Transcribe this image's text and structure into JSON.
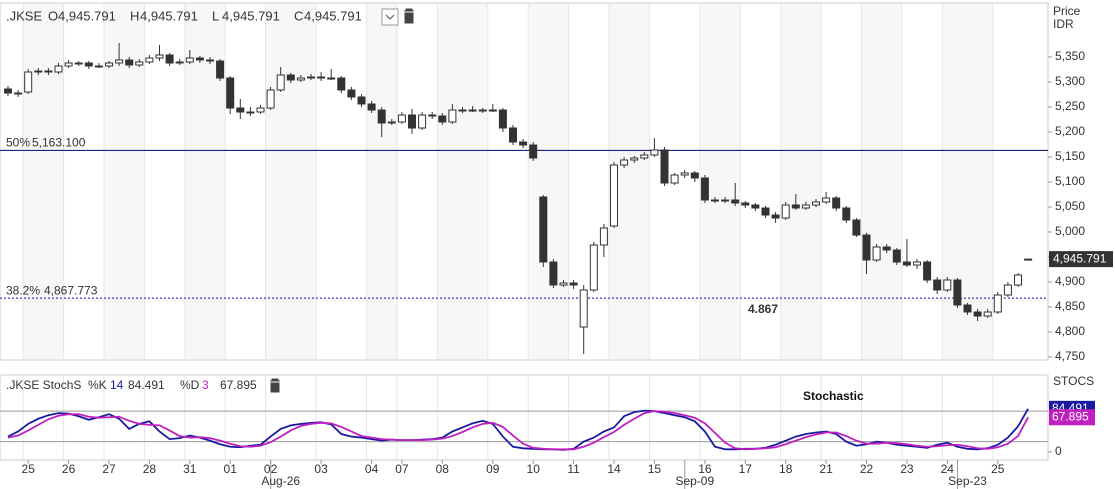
{
  "chart_data": [
    {
      "type": "candlestick",
      "title": ".JKSE",
      "ohlc_fields": [
        "O",
        "H",
        "L",
        "C"
      ],
      "ohlc_labels": [
        "4,945.791",
        "4,945.791",
        "4,945.791",
        "4,945.791"
      ],
      "axis_label": [
        "Price",
        "IDR"
      ],
      "up_color": "#ffffff",
      "down_color": "#333333",
      "ylim": [
        4744,
        5454
      ],
      "yticks": [
        {
          "value": 4750,
          "label": "4,750"
        },
        {
          "value": 4800,
          "label": "4,800"
        },
        {
          "value": 4850,
          "label": "4,850"
        },
        {
          "value": 4900,
          "label": "4,900"
        },
        {
          "value": 4950,
          "label": "4,950"
        },
        {
          "value": 5000,
          "label": "5,000"
        },
        {
          "value": 5050,
          "label": "5,050"
        },
        {
          "value": 5100,
          "label": "5,100"
        },
        {
          "value": 5150,
          "label": "5,150"
        },
        {
          "value": 5200,
          "label": "5,200"
        },
        {
          "value": 5250,
          "label": "5,250"
        },
        {
          "value": 5300,
          "label": "5,300"
        },
        {
          "value": 5350,
          "label": "5,350"
        }
      ],
      "xticks": [
        {
          "value": 2,
          "label": "25"
        },
        {
          "value": 6,
          "label": "26"
        },
        {
          "value": 10,
          "label": "27"
        },
        {
          "value": 14,
          "label": "28"
        },
        {
          "value": 18,
          "label": "31"
        },
        {
          "value": 22,
          "label": "01"
        },
        {
          "value": 26,
          "label": "02"
        },
        {
          "value": 31,
          "label": "03"
        },
        {
          "value": 36,
          "label": "04"
        },
        {
          "value": 39,
          "label": "07"
        },
        {
          "value": 43,
          "label": "08"
        },
        {
          "value": 48,
          "label": "09"
        },
        {
          "value": 52,
          "label": "10"
        },
        {
          "value": 56,
          "label": "11"
        },
        {
          "value": 60,
          "label": "14"
        },
        {
          "value": 64,
          "label": "15"
        },
        {
          "value": 69,
          "label": "16"
        },
        {
          "value": 73,
          "label": "17"
        },
        {
          "value": 77,
          "label": "18"
        },
        {
          "value": 81,
          "label": "21"
        },
        {
          "value": 85,
          "label": "22"
        },
        {
          "value": 89,
          "label": "23"
        },
        {
          "value": 93,
          "label": "24"
        },
        {
          "value": 98,
          "label": "25"
        }
      ],
      "xticks_secondary": [
        {
          "value": 27,
          "label": "Aug-26"
        },
        {
          "value": 68,
          "label": "Sep-09"
        },
        {
          "value": 95,
          "label": "Sep-23"
        }
      ],
      "levels": [
        {
          "name": "50%",
          "value": 5163.1,
          "value_label": "5,163.100",
          "color": "#1a237e",
          "style": "solid"
        },
        {
          "name": "38.2%",
          "value": 4867.773,
          "value_label": "4,867.773",
          "color": "#3a3ab0",
          "style": "dotted"
        }
      ],
      "annotation": "4.867",
      "annotation_color": "#2d3a9c",
      "ohlc": [
        [
          5286,
          5292,
          5272,
          5278
        ],
        [
          5278,
          5284,
          5270,
          5278
        ],
        [
          5280,
          5326,
          5276,
          5320
        ],
        [
          5320,
          5328,
          5314,
          5322
        ],
        [
          5322,
          5328,
          5314,
          5320
        ],
        [
          5320,
          5338,
          5316,
          5332
        ],
        [
          5332,
          5344,
          5328,
          5338
        ],
        [
          5338,
          5342,
          5332,
          5338
        ],
        [
          5338,
          5342,
          5326,
          5332
        ],
        [
          5332,
          5338,
          5328,
          5332
        ],
        [
          5332,
          5342,
          5328,
          5338
        ],
        [
          5338,
          5378,
          5332,
          5344
        ],
        [
          5344,
          5350,
          5328,
          5334
        ],
        [
          5334,
          5346,
          5330,
          5340
        ],
        [
          5340,
          5354,
          5336,
          5348
        ],
        [
          5348,
          5374,
          5342,
          5354
        ],
        [
          5354,
          5358,
          5332,
          5338
        ],
        [
          5338,
          5346,
          5334,
          5340
        ],
        [
          5340,
          5364,
          5336,
          5348
        ],
        [
          5348,
          5352,
          5338,
          5344
        ],
        [
          5344,
          5350,
          5336,
          5342
        ],
        [
          5342,
          5346,
          5302,
          5308
        ],
        [
          5308,
          5312,
          5236,
          5248
        ],
        [
          5248,
          5266,
          5226,
          5240
        ],
        [
          5240,
          5250,
          5232,
          5240
        ],
        [
          5240,
          5254,
          5236,
          5248
        ],
        [
          5248,
          5290,
          5244,
          5284
        ],
        [
          5284,
          5330,
          5280,
          5314
        ],
        [
          5314,
          5318,
          5298,
          5304
        ],
        [
          5304,
          5314,
          5300,
          5308
        ],
        [
          5308,
          5316,
          5304,
          5310
        ],
        [
          5310,
          5320,
          5302,
          5308
        ],
        [
          5308,
          5326,
          5304,
          5308
        ],
        [
          5308,
          5312,
          5278,
          5284
        ],
        [
          5284,
          5290,
          5264,
          5270
        ],
        [
          5270,
          5276,
          5250,
          5256
        ],
        [
          5256,
          5262,
          5238,
          5244
        ],
        [
          5244,
          5250,
          5190,
          5218
        ],
        [
          5218,
          5226,
          5214,
          5220
        ],
        [
          5220,
          5240,
          5216,
          5234
        ],
        [
          5234,
          5246,
          5196,
          5208
        ],
        [
          5208,
          5240,
          5204,
          5234
        ],
        [
          5234,
          5240,
          5226,
          5232
        ],
        [
          5232,
          5238,
          5214,
          5220
        ],
        [
          5220,
          5256,
          5216,
          5244
        ],
        [
          5244,
          5250,
          5238,
          5244
        ],
        [
          5244,
          5252,
          5240,
          5244
        ],
        [
          5244,
          5248,
          5238,
          5244
        ],
        [
          5244,
          5256,
          5240,
          5244
        ],
        [
          5244,
          5248,
          5200,
          5208
        ],
        [
          5208,
          5214,
          5174,
          5180
        ],
        [
          5180,
          5186,
          5168,
          5174
        ],
        [
          5174,
          5180,
          5142,
          5148
        ],
        [
          5070,
          5074,
          4930,
          4940
        ],
        [
          4940,
          4946,
          4888,
          4894
        ],
        [
          4894,
          4904,
          4890,
          4898
        ],
        [
          4898,
          4904,
          4886,
          4894
        ],
        [
          4810,
          4894,
          4756,
          4884
        ],
        [
          4884,
          4980,
          4880,
          4974
        ],
        [
          4974,
          5016,
          4950,
          5008
        ],
        [
          5012,
          5140,
          5008,
          5134
        ],
        [
          5134,
          5150,
          5128,
          5144
        ],
        [
          5144,
          5152,
          5138,
          5148
        ],
        [
          5148,
          5160,
          5144,
          5154
        ],
        [
          5154,
          5188,
          5150,
          5164
        ],
        [
          5164,
          5170,
          5092,
          5098
        ],
        [
          5098,
          5118,
          5094,
          5114
        ],
        [
          5114,
          5124,
          5108,
          5118
        ],
        [
          5118,
          5122,
          5100,
          5108
        ],
        [
          5108,
          5114,
          5058,
          5064
        ],
        [
          5064,
          5070,
          5058,
          5064
        ],
        [
          5064,
          5070,
          5058,
          5064
        ],
        [
          5064,
          5098,
          5052,
          5058
        ],
        [
          5058,
          5062,
          5048,
          5054
        ],
        [
          5054,
          5058,
          5042,
          5048
        ],
        [
          5048,
          5052,
          5028,
          5034
        ],
        [
          5034,
          5040,
          5018,
          5028
        ],
        [
          5028,
          5060,
          5024,
          5054
        ],
        [
          5054,
          5076,
          5044,
          5048
        ],
        [
          5048,
          5060,
          5044,
          5054
        ],
        [
          5054,
          5066,
          5050,
          5060
        ],
        [
          5060,
          5080,
          5056,
          5068
        ],
        [
          5068,
          5072,
          5042,
          5048
        ],
        [
          5048,
          5052,
          5018,
          5024
        ],
        [
          5024,
          5028,
          4990,
          4994
        ],
        [
          4994,
          4998,
          4916,
          4944
        ],
        [
          4944,
          4976,
          4940,
          4970
        ],
        [
          4970,
          4976,
          4958,
          4964
        ],
        [
          4964,
          4968,
          4934,
          4940
        ],
        [
          4940,
          4986,
          4930,
          4934
        ],
        [
          4934,
          4946,
          4926,
          4940
        ],
        [
          4940,
          4944,
          4898,
          4904
        ],
        [
          4904,
          4910,
          4876,
          4884
        ],
        [
          4884,
          4910,
          4880,
          4904
        ],
        [
          4904,
          4908,
          4848,
          4854
        ],
        [
          4854,
          4858,
          4834,
          4840
        ],
        [
          4840,
          4846,
          4822,
          4832
        ],
        [
          4832,
          4846,
          4828,
          4840
        ],
        [
          4840,
          4880,
          4836,
          4874
        ],
        [
          4874,
          4900,
          4870,
          4894
        ],
        [
          4894,
          4918,
          4890,
          4914
        ],
        [
          4945.791,
          4945.791,
          4945.791,
          4945.791
        ]
      ]
    },
    {
      "type": "line",
      "title": ".JKSE StochS",
      "annotation": "Stochastic",
      "axis_label": "STOCS",
      "ylim": [
        -16,
        149
      ],
      "yticks": [
        0
      ],
      "levels": [
        20,
        80
      ],
      "series": [
        {
          "name": "%K",
          "period": 14,
          "color": "#1a1aa0",
          "values": [
            30,
            40,
            55,
            65,
            72,
            76,
            75,
            70,
            63,
            68,
            74,
            65,
            45,
            55,
            60,
            40,
            25,
            27,
            32,
            28,
            22,
            15,
            10,
            9,
            12,
            14,
            30,
            45,
            52,
            55,
            57,
            58,
            54,
            35,
            30,
            28,
            25,
            22,
            24,
            23,
            23,
            24,
            25,
            28,
            40,
            48,
            56,
            61,
            55,
            30,
            10,
            7,
            6,
            5,
            5,
            4,
            6,
            20,
            28,
            40,
            48,
            70,
            78,
            81,
            80,
            76,
            72,
            68,
            60,
            40,
            10,
            5,
            5,
            6,
            6,
            8,
            14,
            22,
            30,
            35,
            38,
            40,
            35,
            20,
            12,
            15,
            20,
            18,
            14,
            12,
            10,
            8,
            14,
            18,
            10,
            6,
            5,
            7,
            14,
            28,
            50,
            84.491
          ]
        },
        {
          "name": "%D",
          "period": 3,
          "color": "#c020c0",
          "values": [
            28,
            32,
            42,
            53,
            64,
            71,
            74,
            74,
            69,
            67,
            68,
            69,
            61,
            55,
            53,
            52,
            42,
            31,
            28,
            29,
            27,
            22,
            16,
            11,
            10,
            12,
            19,
            30,
            42,
            51,
            55,
            57,
            56,
            49,
            40,
            31,
            28,
            25,
            24,
            23,
            23,
            23,
            24,
            26,
            31,
            39,
            48,
            55,
            57,
            49,
            32,
            16,
            8,
            6,
            5,
            5,
            5,
            10,
            18,
            29,
            39,
            53,
            65,
            76,
            80,
            79,
            76,
            72,
            67,
            56,
            37,
            18,
            7,
            5,
            6,
            7,
            9,
            15,
            22,
            29,
            34,
            38,
            38,
            31,
            22,
            16,
            16,
            18,
            17,
            15,
            12,
            10,
            11,
            13,
            14,
            11,
            7,
            6,
            9,
            16,
            31,
            67.895
          ]
        }
      ]
    }
  ]
}
